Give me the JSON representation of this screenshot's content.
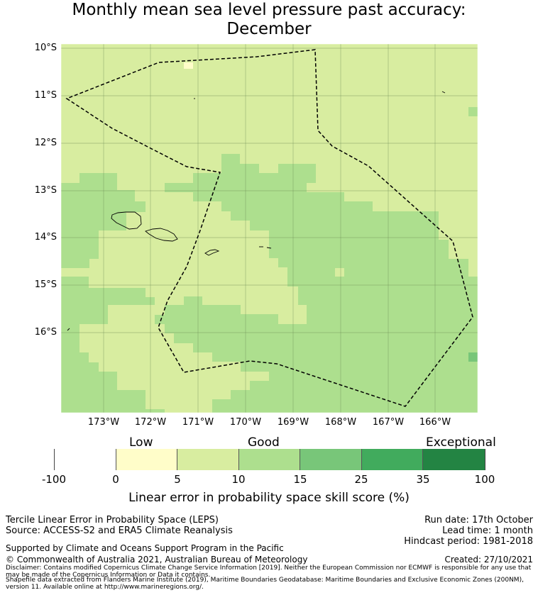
{
  "title_line1": "Monthly mean sea level pressure past accuracy:",
  "title_line2": "December",
  "lat_labels": [
    "10°S",
    "11°S",
    "12°S",
    "13°S",
    "14°S",
    "15°S",
    "16°S"
  ],
  "lon_labels": [
    "173°W",
    "172°W",
    "171°W",
    "170°W",
    "169°W",
    "168°W",
    "167°W",
    "166°W"
  ],
  "colorbar": {
    "bands": [
      "Low",
      "Good",
      "Exceptional"
    ],
    "ticks": [
      "-100",
      "0",
      "5",
      "10",
      "15",
      "25",
      "35",
      "100"
    ],
    "colors": [
      "#ffffff",
      "#fffdc9",
      "#d8eda0",
      "#addf8e",
      "#78c679",
      "#41ab5d",
      "#238443"
    ],
    "title": "Linear error in probability space skill score (%)"
  },
  "map_colors": {
    "light": "#d8eda0",
    "mid": "#addf8e",
    "pale": "#fffdc9",
    "dark": "#78c679"
  },
  "info_left": [
    "Tercile Linear Error in Probability Space (LEPS)",
    "Source: ACCESS-S2 and ERA5 Climate Reanalysis"
  ],
  "info_right": [
    "Run date: 17th October",
    "Lead time: 1 month",
    "Hindcast period: 1981-2018"
  ],
  "support": "Supported by Climate and Oceans Support Program in the Pacific",
  "copyright": "© Commonwealth of Australia 2021, Australian Bureau of Meteorology",
  "created": "Created: 27/10/2021",
  "disclaimer": "Disclaimer: Contains modified Copernicus Climate Change Service Information [2019]. Neither the European Commission nor ECMWF is responsible for any use that may be made of the Copernicus Information or Data it contains.",
  "shapefile": "Shapefile data extracted from Flanders Marine Institute (2019), Maritime Boundaries Geodatabase: Maritime Boundaries and Exclusive Economic Zones (200NM), version 11. Available online at http://www.marineregions.org/."
}
